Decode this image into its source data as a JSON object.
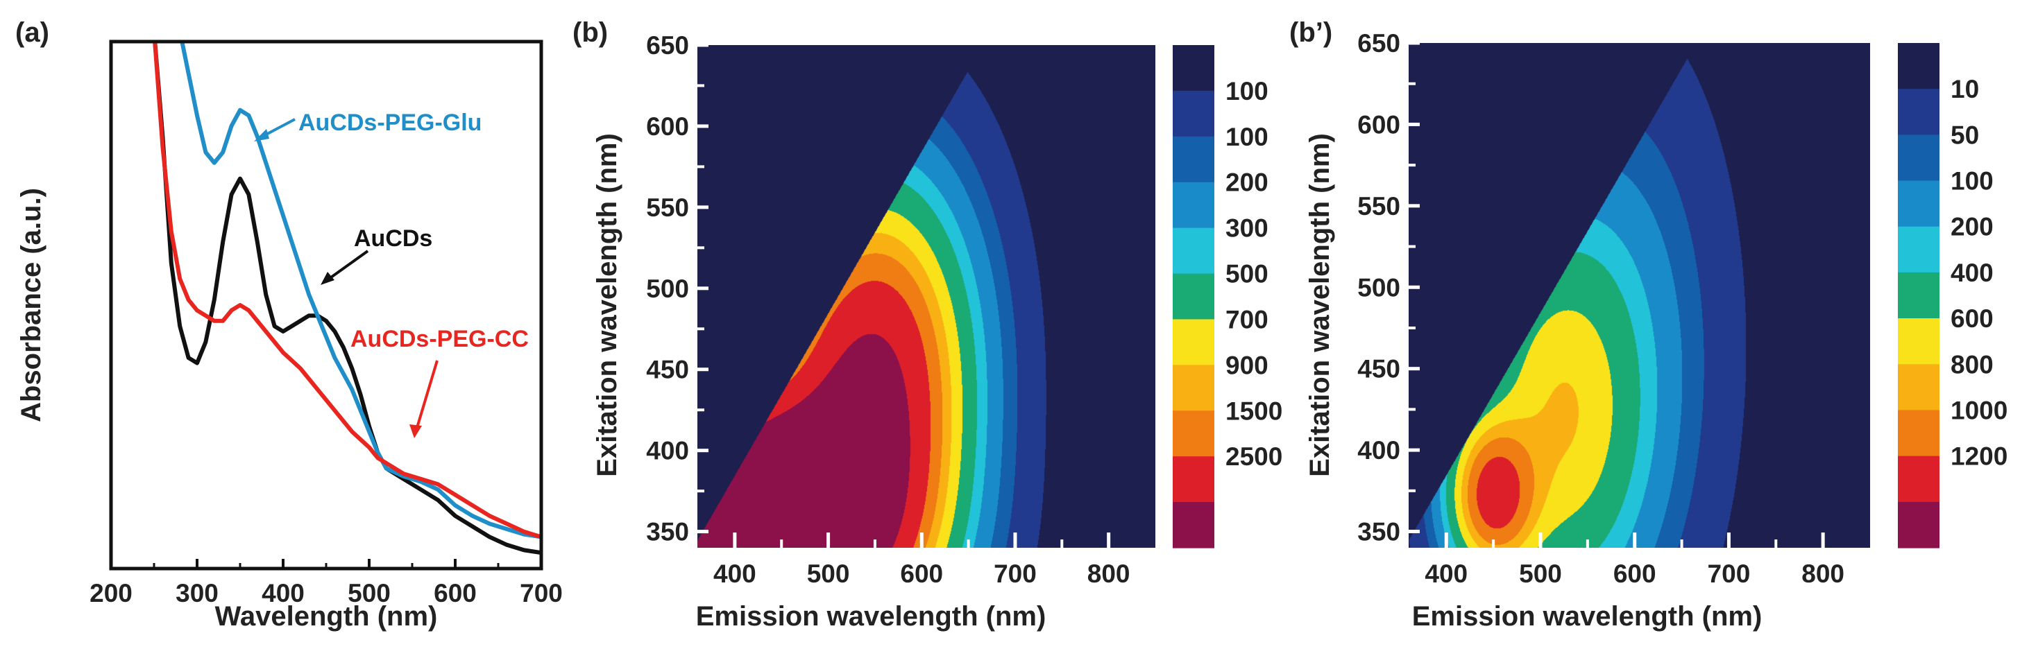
{
  "colors": {
    "black_series": "#111111",
    "blue_series": "#1f8ec9",
    "red_series": "#e8261f",
    "contour_background": "#1d1f4e",
    "colormap": [
      "#8c1049",
      "#dd1f2a",
      "#f07c14",
      "#f9b013",
      "#f9e21a",
      "#1aaa73",
      "#22c2d8",
      "#1a8bc9",
      "#1460ab",
      "#223a8d",
      "#1d1f4e"
    ]
  },
  "chart_data": [
    {
      "panel_label": "(a)",
      "type": "line",
      "xlabel": "Wavelength (nm)",
      "ylabel": "Absorbance (a.u.)",
      "xlim": [
        200,
        700
      ],
      "ylim": [
        0,
        1
      ],
      "xticks": [
        200,
        300,
        400,
        500,
        600,
        700
      ],
      "grid": false,
      "series": [
        {
          "name": "AuCDs",
          "color": "#111111",
          "x": [
            250,
            260,
            270,
            280,
            290,
            300,
            310,
            320,
            330,
            340,
            350,
            360,
            370,
            380,
            390,
            400,
            410,
            420,
            430,
            440,
            450,
            460,
            470,
            480,
            490,
            500,
            510,
            520,
            540,
            560,
            580,
            600,
            620,
            640,
            660,
            680,
            700
          ],
          "y": [
            1.02,
            0.82,
            0.58,
            0.46,
            0.4,
            0.39,
            0.43,
            0.51,
            0.62,
            0.71,
            0.74,
            0.71,
            0.62,
            0.52,
            0.46,
            0.45,
            0.46,
            0.47,
            0.48,
            0.48,
            0.47,
            0.45,
            0.42,
            0.38,
            0.33,
            0.27,
            0.22,
            0.19,
            0.17,
            0.15,
            0.13,
            0.1,
            0.08,
            0.06,
            0.045,
            0.035,
            0.03
          ]
        },
        {
          "name": "AuCDs-PEG-Glu",
          "color": "#1f8ec9",
          "x": [
            280,
            290,
            300,
            310,
            320,
            330,
            340,
            350,
            360,
            370,
            380,
            390,
            400,
            410,
            420,
            430,
            440,
            450,
            460,
            470,
            480,
            490,
            500,
            510,
            520,
            540,
            560,
            580,
            600,
            620,
            640,
            660,
            680,
            700
          ],
          "y": [
            1.02,
            0.94,
            0.86,
            0.79,
            0.77,
            0.79,
            0.84,
            0.87,
            0.86,
            0.82,
            0.77,
            0.72,
            0.67,
            0.62,
            0.57,
            0.52,
            0.48,
            0.44,
            0.4,
            0.37,
            0.34,
            0.3,
            0.26,
            0.22,
            0.19,
            0.175,
            0.165,
            0.15,
            0.12,
            0.1,
            0.085,
            0.075,
            0.065,
            0.06
          ]
        },
        {
          "name": "AuCDs-PEG-CC",
          "color": "#e8261f",
          "x": [
            250,
            260,
            270,
            280,
            290,
            300,
            310,
            320,
            330,
            340,
            350,
            360,
            370,
            380,
            390,
            400,
            420,
            440,
            460,
            480,
            500,
            510,
            520,
            540,
            560,
            580,
            600,
            620,
            640,
            660,
            680,
            700
          ],
          "y": [
            1.02,
            0.8,
            0.64,
            0.55,
            0.51,
            0.49,
            0.48,
            0.47,
            0.47,
            0.49,
            0.5,
            0.49,
            0.47,
            0.45,
            0.43,
            0.41,
            0.38,
            0.34,
            0.3,
            0.26,
            0.23,
            0.21,
            0.2,
            0.18,
            0.17,
            0.16,
            0.14,
            0.12,
            0.1,
            0.085,
            0.07,
            0.06
          ]
        }
      ],
      "annotations": [
        {
          "text": "AuCDs-PEG-Glu",
          "color": "#1f8ec9"
        },
        {
          "text": "AuCDs",
          "color": "#111111"
        },
        {
          "text": "AuCDs-PEG-CC",
          "color": "#e8261f"
        }
      ]
    },
    {
      "panel_label": "(b)",
      "type": "heatmap",
      "xlabel": "Emission wavelength (nm)",
      "ylabel": "Exitation wavelength (nm)",
      "xlim": [
        360,
        850
      ],
      "ylim": [
        340,
        650
      ],
      "xticks": [
        400,
        500,
        600,
        700,
        800
      ],
      "yticks": [
        350,
        400,
        450,
        500,
        550,
        600,
        650
      ],
      "colorbar_labels": [
        "100",
        "100",
        "200",
        "300",
        "500",
        "700",
        "900",
        "1500",
        "2500"
      ],
      "sources": [
        {
          "x": 450,
          "y": 355,
          "sx": 75,
          "sy": 45,
          "a": 4200
        },
        {
          "x": 540,
          "y": 430,
          "sx": 55,
          "sy": 65,
          "a": 1600
        },
        {
          "x": 570,
          "y": 460,
          "sx": 55,
          "sy": 70,
          "a": 500
        }
      ]
    },
    {
      "panel_label": "(b’)",
      "type": "heatmap",
      "xlabel": "Emission wavelength (nm)",
      "ylabel": "Exitation wavelength (nm)",
      "xlim": [
        360,
        850
      ],
      "ylim": [
        340,
        650
      ],
      "xticks": [
        400,
        500,
        600,
        700,
        800
      ],
      "yticks": [
        350,
        400,
        450,
        500,
        550,
        600,
        650
      ],
      "colorbar_labels": [
        "10",
        "50",
        "100",
        "200",
        "400",
        "600",
        "800",
        "1000",
        "1200"
      ],
      "sources": [
        {
          "x": 450,
          "y": 372,
          "sx": 28,
          "sy": 28,
          "a": 1300
        },
        {
          "x": 520,
          "y": 420,
          "sx": 55,
          "sy": 70,
          "a": 650
        },
        {
          "x": 580,
          "y": 470,
          "sx": 60,
          "sy": 90,
          "a": 130
        }
      ]
    }
  ]
}
